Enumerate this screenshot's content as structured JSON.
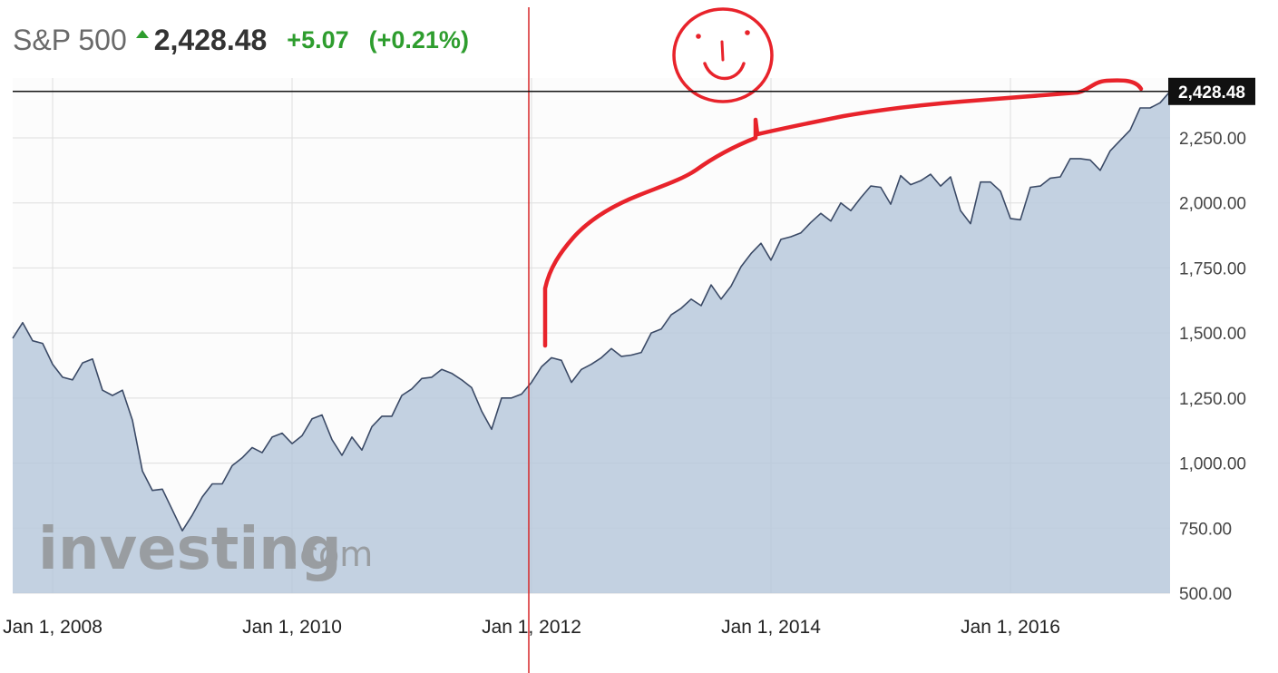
{
  "header": {
    "instrument": "S&P 500",
    "direction_icon": "up-arrow-icon",
    "price": "2,428.48",
    "change": "+5.07",
    "change_pct": "(+0.21%)",
    "up_color": "#2e9d2e"
  },
  "watermark": {
    "brand": "investing",
    "suffix": ".com"
  },
  "last_price_label": "2,428.48",
  "colors": {
    "line": "#3b4a66",
    "area": "#b9c9dc",
    "annotation": "#e8232b",
    "marker_line": "#d62728"
  },
  "chart_data": {
    "type": "area",
    "title": "S&P 500",
    "xlabel": "",
    "ylabel": "",
    "x_ticks": [
      "Jan 1, 2008",
      "Jan 1, 2010",
      "Jan 1, 2012",
      "Jan 1, 2014",
      "Jan 1, 2016"
    ],
    "y_ticks": [
      "2,250.00",
      "2,000.00",
      "1,750.00",
      "1,500.00",
      "1,250.00",
      "1,000.00",
      "750.00",
      "500.00"
    ],
    "ylim": [
      500,
      2480
    ],
    "xlim": [
      "2007-09",
      "2017-05"
    ],
    "grid": true,
    "vertical_marker": "2011-12",
    "last_value": 2428.48,
    "series": [
      {
        "values": [
          [
            "2007-09",
            1480
          ],
          [
            "2007-10",
            1540
          ],
          [
            "2007-11",
            1470
          ],
          [
            "2007-12",
            1460
          ],
          [
            "2008-01",
            1380
          ],
          [
            "2008-02",
            1330
          ],
          [
            "2008-03",
            1320
          ],
          [
            "2008-04",
            1385
          ],
          [
            "2008-05",
            1400
          ],
          [
            "2008-06",
            1280
          ],
          [
            "2008-07",
            1260
          ],
          [
            "2008-08",
            1280
          ],
          [
            "2008-09",
            1165
          ],
          [
            "2008-10",
            970
          ],
          [
            "2008-11",
            895
          ],
          [
            "2008-12",
            900
          ],
          [
            "2009-01",
            820
          ],
          [
            "2009-02",
            740
          ],
          [
            "2009-03",
            800
          ],
          [
            "2009-04",
            870
          ],
          [
            "2009-05",
            920
          ],
          [
            "2009-06",
            920
          ],
          [
            "2009-07",
            990
          ],
          [
            "2009-08",
            1020
          ],
          [
            "2009-09",
            1060
          ],
          [
            "2009-10",
            1040
          ],
          [
            "2009-11",
            1100
          ],
          [
            "2009-12",
            1115
          ],
          [
            "2010-01",
            1075
          ],
          [
            "2010-02",
            1105
          ],
          [
            "2010-03",
            1170
          ],
          [
            "2010-04",
            1185
          ],
          [
            "2010-05",
            1090
          ],
          [
            "2010-06",
            1030
          ],
          [
            "2010-07",
            1100
          ],
          [
            "2010-08",
            1050
          ],
          [
            "2010-09",
            1140
          ],
          [
            "2010-10",
            1180
          ],
          [
            "2010-11",
            1180
          ],
          [
            "2010-12",
            1260
          ],
          [
            "2011-01",
            1285
          ],
          [
            "2011-02",
            1325
          ],
          [
            "2011-03",
            1330
          ],
          [
            "2011-04",
            1360
          ],
          [
            "2011-05",
            1345
          ],
          [
            "2011-06",
            1320
          ],
          [
            "2011-07",
            1290
          ],
          [
            "2011-08",
            1200
          ],
          [
            "2011-09",
            1130
          ],
          [
            "2011-10",
            1250
          ],
          [
            "2011-11",
            1250
          ],
          [
            "2011-12",
            1265
          ],
          [
            "2012-01",
            1310
          ],
          [
            "2012-02",
            1370
          ],
          [
            "2012-03",
            1405
          ],
          [
            "2012-04",
            1395
          ],
          [
            "2012-05",
            1310
          ],
          [
            "2012-06",
            1360
          ],
          [
            "2012-07",
            1380
          ],
          [
            "2012-08",
            1405
          ],
          [
            "2012-09",
            1440
          ],
          [
            "2012-10",
            1410
          ],
          [
            "2012-11",
            1415
          ],
          [
            "2012-12",
            1425
          ],
          [
            "2013-01",
            1500
          ],
          [
            "2013-02",
            1515
          ],
          [
            "2013-03",
            1570
          ],
          [
            "2013-04",
            1595
          ],
          [
            "2013-05",
            1630
          ],
          [
            "2013-06",
            1605
          ],
          [
            "2013-07",
            1685
          ],
          [
            "2013-08",
            1630
          ],
          [
            "2013-09",
            1680
          ],
          [
            "2013-10",
            1755
          ],
          [
            "2013-11",
            1805
          ],
          [
            "2013-12",
            1845
          ],
          [
            "2014-01",
            1780
          ],
          [
            "2014-02",
            1860
          ],
          [
            "2014-03",
            1870
          ],
          [
            "2014-04",
            1885
          ],
          [
            "2014-05",
            1925
          ],
          [
            "2014-06",
            1960
          ],
          [
            "2014-07",
            1930
          ],
          [
            "2014-08",
            2000
          ],
          [
            "2014-09",
            1970
          ],
          [
            "2014-10",
            2020
          ],
          [
            "2014-11",
            2065
          ],
          [
            "2014-12",
            2060
          ],
          [
            "2015-01",
            1995
          ],
          [
            "2015-02",
            2105
          ],
          [
            "2015-03",
            2070
          ],
          [
            "2015-04",
            2085
          ],
          [
            "2015-05",
            2110
          ],
          [
            "2015-06",
            2065
          ],
          [
            "2015-07",
            2100
          ],
          [
            "2015-08",
            1970
          ],
          [
            "2015-09",
            1920
          ],
          [
            "2015-10",
            2080
          ],
          [
            "2015-11",
            2080
          ],
          [
            "2015-12",
            2045
          ],
          [
            "2016-01",
            1940
          ],
          [
            "2016-02",
            1935
          ],
          [
            "2016-03",
            2060
          ],
          [
            "2016-04",
            2065
          ],
          [
            "2016-05",
            2095
          ],
          [
            "2016-06",
            2100
          ],
          [
            "2016-07",
            2170
          ],
          [
            "2016-08",
            2170
          ],
          [
            "2016-09",
            2165
          ],
          [
            "2016-10",
            2125
          ],
          [
            "2016-11",
            2200
          ],
          [
            "2016-12",
            2240
          ],
          [
            "2017-01",
            2280
          ],
          [
            "2017-02",
            2365
          ],
          [
            "2017-03",
            2365
          ],
          [
            "2017-04",
            2385
          ],
          [
            "2017-05",
            2428.48
          ]
        ]
      }
    ]
  }
}
